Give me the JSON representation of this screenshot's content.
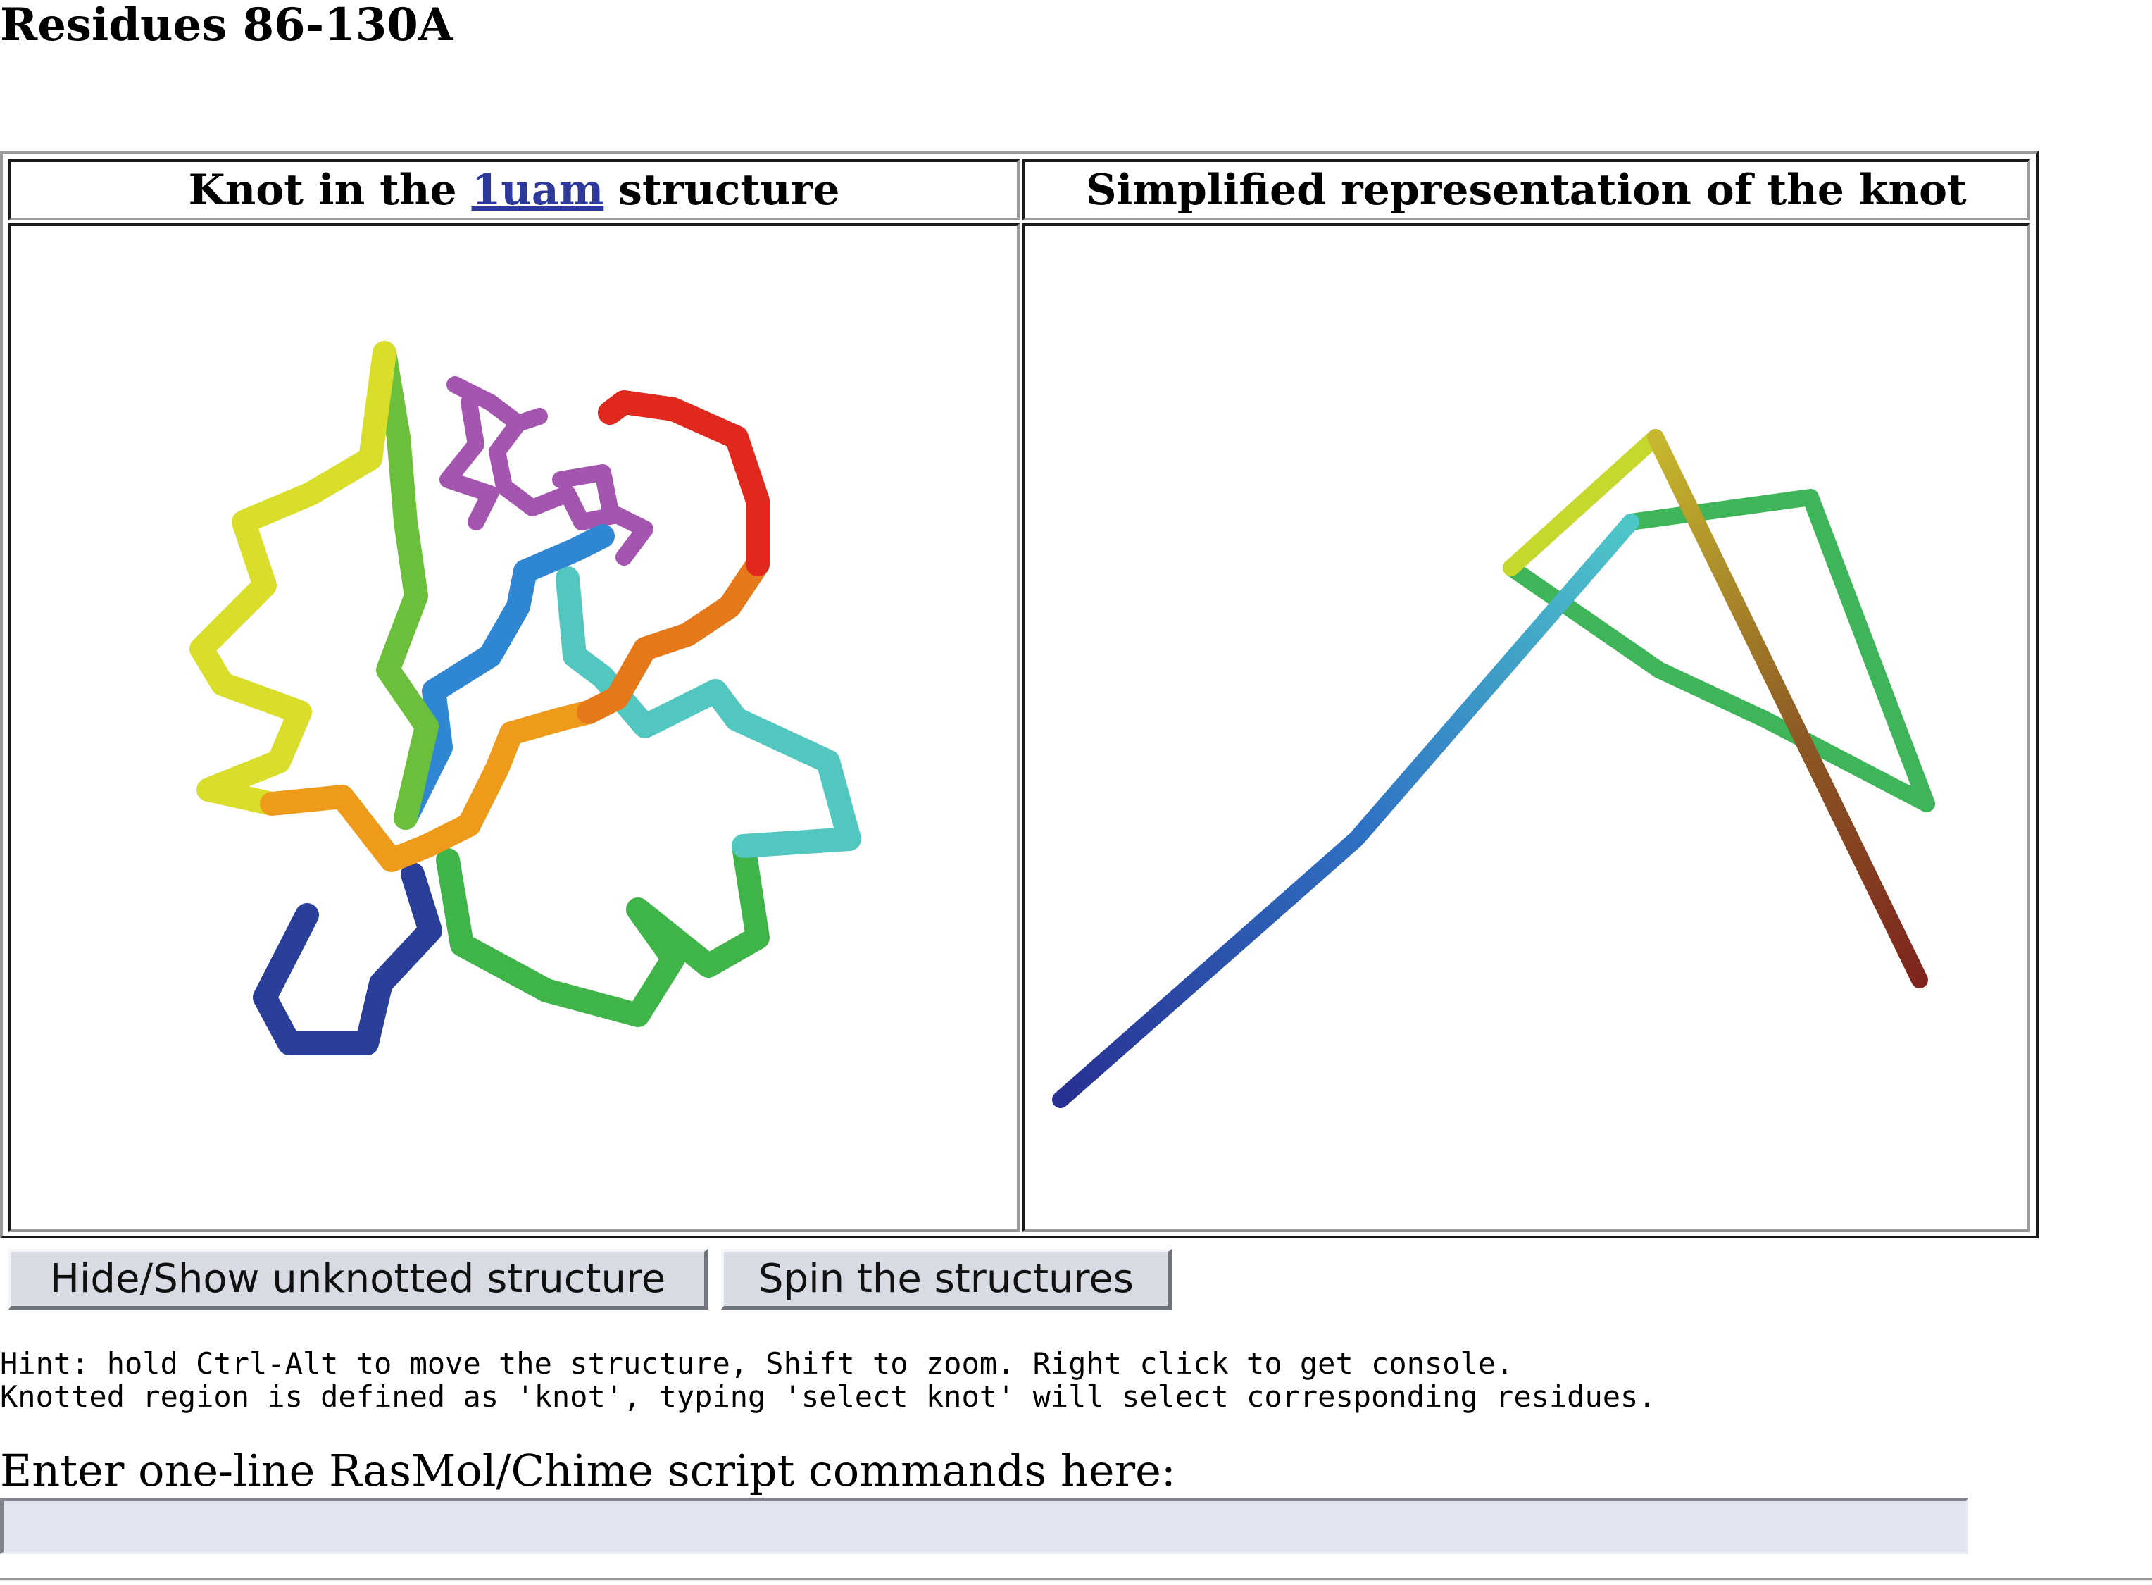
{
  "page": {
    "title": "Residues 86-130A"
  },
  "table": {
    "left_header": {
      "prefix": "Knot in the ",
      "link": "1uam",
      "suffix": " structure"
    },
    "right_header": "Simplified representation of the knot"
  },
  "buttons": {
    "hide_show": "Hide/Show unknotted structure",
    "spin": "Spin the structures"
  },
  "hint": {
    "line1": "Hint: hold Ctrl-Alt to move the structure, Shift to zoom. Right click to get console.",
    "line2": "Knotted region is defined as 'knot', typing 'select knot' will select corresponding residues."
  },
  "script": {
    "label": "Enter one-line RasMol/Chime script commands here:",
    "value": ""
  },
  "colors": {
    "link": "#2e3a9b",
    "button_face": "#d8dbe3",
    "input_bg": "#e2e5ef",
    "ligand": "#a455b0"
  },
  "icons": {
    "left_view": "protein-backbone-render",
    "right_view": "knot-diagram-render"
  }
}
